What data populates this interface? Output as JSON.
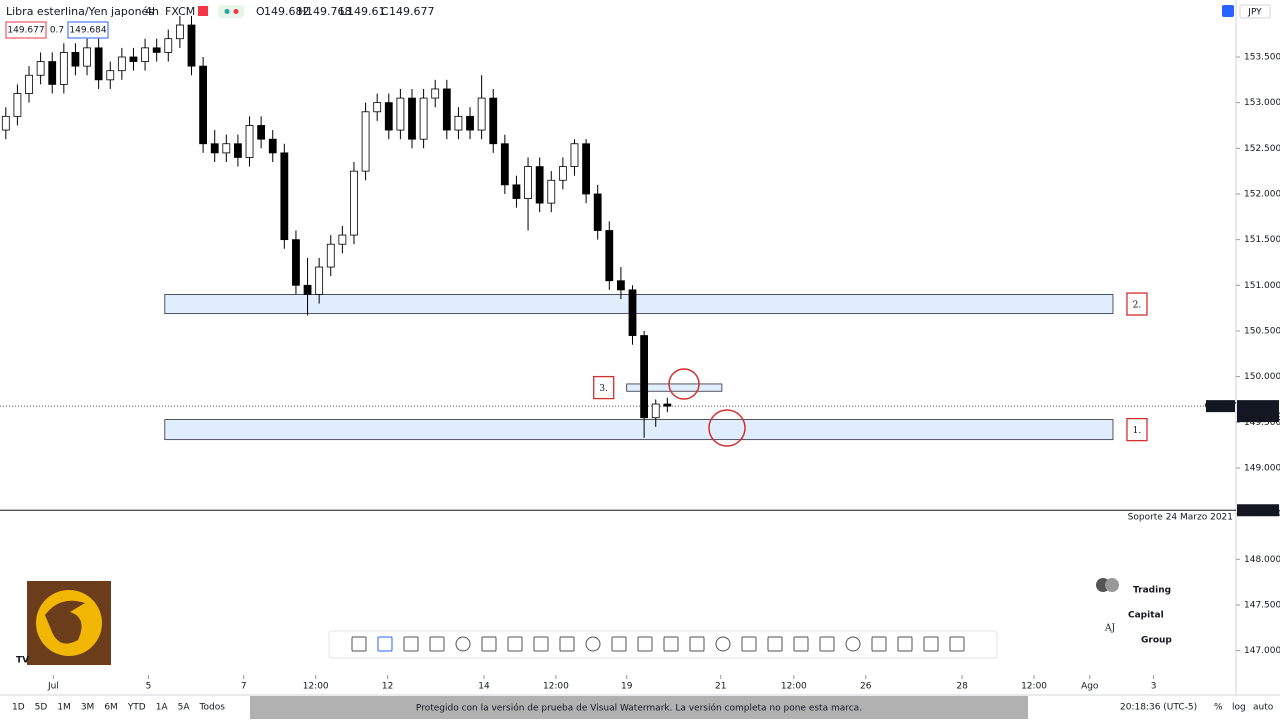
{
  "header": {
    "symbol": "Libra esterlina/Yen japonés",
    "interval": "4h",
    "source": "FXCM",
    "o_label": "O",
    "open": 149.682,
    "h_label": "H",
    "high": 149.768,
    "l_label": "L",
    "low": 149.61,
    "c_label": "C",
    "close": 149.677,
    "sell_price": "149.677",
    "spread": "0.7",
    "buy_price": "149.684",
    "currency": "JPY"
  },
  "chart_data": {
    "type": "candlestick",
    "ohlc": [
      [
        152.7,
        152.95,
        152.6,
        152.85
      ],
      [
        152.85,
        153.2,
        152.75,
        153.1
      ],
      [
        153.1,
        153.4,
        153.0,
        153.3
      ],
      [
        153.3,
        153.55,
        153.2,
        153.45
      ],
      [
        153.45,
        153.55,
        153.1,
        153.2
      ],
      [
        153.2,
        153.65,
        153.1,
        153.55
      ],
      [
        153.55,
        153.65,
        153.3,
        153.4
      ],
      [
        153.4,
        153.7,
        153.3,
        153.6
      ],
      [
        153.6,
        153.7,
        153.15,
        153.25
      ],
      [
        153.25,
        153.45,
        153.15,
        153.35
      ],
      [
        153.35,
        153.6,
        153.25,
        153.5
      ],
      [
        153.5,
        153.6,
        153.35,
        153.45
      ],
      [
        153.45,
        153.7,
        153.35,
        153.6
      ],
      [
        153.6,
        153.7,
        153.45,
        153.55
      ],
      [
        153.55,
        153.8,
        153.45,
        153.7
      ],
      [
        153.7,
        153.95,
        153.6,
        153.85
      ],
      [
        153.85,
        153.95,
        153.3,
        153.4
      ],
      [
        153.4,
        153.5,
        152.45,
        152.55
      ],
      [
        152.55,
        152.7,
        152.35,
        152.45
      ],
      [
        152.45,
        152.65,
        152.35,
        152.55
      ],
      [
        152.55,
        152.65,
        152.3,
        152.4
      ],
      [
        152.4,
        152.85,
        152.3,
        152.75
      ],
      [
        152.75,
        152.85,
        152.5,
        152.6
      ],
      [
        152.6,
        152.7,
        152.35,
        152.45
      ],
      [
        152.45,
        152.55,
        151.4,
        151.5
      ],
      [
        151.5,
        151.6,
        150.9,
        151.0
      ],
      [
        151.0,
        151.3,
        150.67,
        150.9
      ],
      [
        150.9,
        151.3,
        150.8,
        151.2
      ],
      [
        151.2,
        151.55,
        151.1,
        151.45
      ],
      [
        151.45,
        151.65,
        151.35,
        151.55
      ],
      [
        151.55,
        152.35,
        151.45,
        152.25
      ],
      [
        152.25,
        153.0,
        152.15,
        152.9
      ],
      [
        152.9,
        153.1,
        152.8,
        153.0
      ],
      [
        153.0,
        153.1,
        152.6,
        152.7
      ],
      [
        152.7,
        153.15,
        152.6,
        153.05
      ],
      [
        153.05,
        153.15,
        152.5,
        152.6
      ],
      [
        152.6,
        153.15,
        152.5,
        153.05
      ],
      [
        153.05,
        153.25,
        152.95,
        153.15
      ],
      [
        153.15,
        153.25,
        152.6,
        152.7
      ],
      [
        152.7,
        152.95,
        152.6,
        152.85
      ],
      [
        152.85,
        152.95,
        152.6,
        152.7
      ],
      [
        152.7,
        153.3,
        152.6,
        153.05
      ],
      [
        153.05,
        153.15,
        152.45,
        152.55
      ],
      [
        152.55,
        152.65,
        152.0,
        152.1
      ],
      [
        152.1,
        152.2,
        151.85,
        151.95
      ],
      [
        151.95,
        152.4,
        151.6,
        152.3
      ],
      [
        152.3,
        152.4,
        151.8,
        151.9
      ],
      [
        151.9,
        152.25,
        151.8,
        152.15
      ],
      [
        152.15,
        152.4,
        152.05,
        152.3
      ],
      [
        152.3,
        152.6,
        152.2,
        152.55
      ],
      [
        152.55,
        152.6,
        151.9,
        152.0
      ],
      [
        152.0,
        152.1,
        151.5,
        151.6
      ],
      [
        151.6,
        151.7,
        150.95,
        151.05
      ],
      [
        151.05,
        151.2,
        150.85,
        150.95
      ],
      [
        150.95,
        151.0,
        150.35,
        150.45
      ],
      [
        150.45,
        150.5,
        149.33,
        149.55
      ],
      [
        149.55,
        149.75,
        149.45,
        149.7
      ],
      [
        149.7,
        149.768,
        149.61,
        149.677
      ]
    ],
    "xlim": [
      -0.5,
      106
    ],
    "ylim": [
      146.514,
      154.124
    ],
    "xticks": [
      {
        "value": 4.1,
        "label": "Jul"
      },
      {
        "value": 12.3,
        "label": "5"
      },
      {
        "value": 20.5,
        "label": "7"
      },
      {
        "value": 26.7,
        "label": "12:00"
      },
      {
        "value": 32.9,
        "label": "12"
      },
      {
        "value": 41.2,
        "label": "14"
      },
      {
        "value": 47.4,
        "label": "12:00"
      },
      {
        "value": 53.5,
        "label": "19"
      },
      {
        "value": 61.6,
        "label": "21"
      },
      {
        "value": 67.9,
        "label": "12:00"
      },
      {
        "value": 74.1,
        "label": "26"
      },
      {
        "value": 82.4,
        "label": "28"
      },
      {
        "value": 88.6,
        "label": "12:00"
      },
      {
        "value": 93.4,
        "label": "Ago"
      },
      {
        "value": 98.9,
        "label": "3"
      }
    ],
    "yticks": [
      {
        "value": 147,
        "label": "147.000"
      },
      {
        "value": 147.5,
        "label": "147.500"
      },
      {
        "value": 148,
        "label": "148.000"
      },
      {
        "value": 148.5,
        "label": "148.500"
      },
      {
        "value": 149,
        "label": "149.000"
      },
      {
        "value": 149.5,
        "label": "149.500"
      },
      {
        "value": 150,
        "label": "150.000"
      },
      {
        "value": 150.5,
        "label": "150.500"
      },
      {
        "value": 151,
        "label": "151.000"
      },
      {
        "value": 151.5,
        "label": "151.500"
      },
      {
        "value": 152,
        "label": "152.000"
      },
      {
        "value": 152.5,
        "label": "152.500"
      },
      {
        "value": 153,
        "label": "153.000"
      },
      {
        "value": 153.5,
        "label": "153.500"
      }
    ],
    "zones": [
      {
        "label": "2.",
        "from": 13.7,
        "to": 95.4,
        "low": 150.69,
        "high": 150.9
      },
      {
        "label": "1.",
        "from": 13.7,
        "to": 95.4,
        "low": 149.31,
        "high": 149.53
      },
      {
        "label": "3.",
        "from": 53.5,
        "to": 61.7,
        "low": 149.84,
        "high": 149.92
      }
    ],
    "support": {
      "name": "Soporte 24 Marzo 2021",
      "value": 148.537
    },
    "last": {
      "symbol": "GBPJPY",
      "value": 149.677,
      "countdown": "03:41:24"
    }
  },
  "toolbar": {
    "ranges": [
      "1D",
      "5D",
      "1M",
      "3M",
      "6M",
      "YTD",
      "1A",
      "5A",
      "Todos"
    ],
    "time": "20:18:36 (UTC-5)",
    "options": [
      "%",
      "log",
      "auto"
    ]
  },
  "logo": {
    "lines": [
      "Trading",
      "Capital",
      "Group"
    ]
  },
  "watermark": "Protegido con la versión de prueba de Visual Watermark. La versión completa no pone esta marca."
}
